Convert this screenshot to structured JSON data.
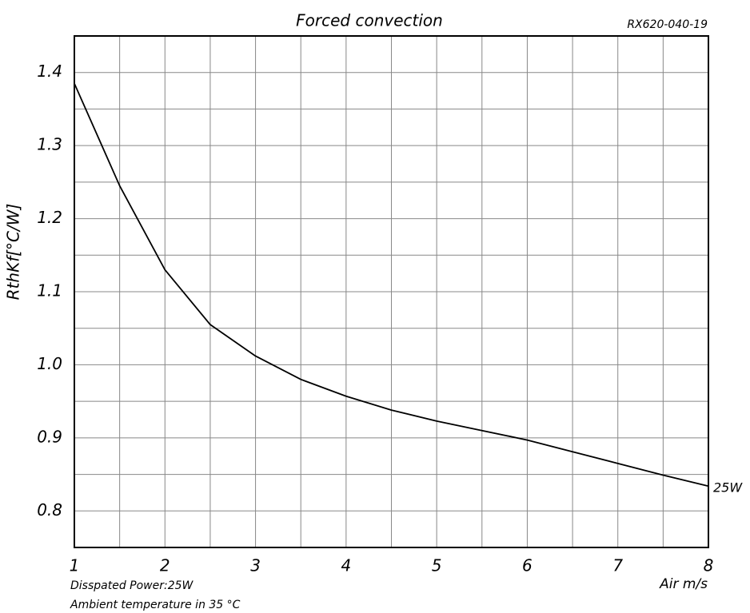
{
  "chart_data": {
    "type": "line",
    "title": "Forced convection",
    "subtitle": "RX620-040-19",
    "y_label": "RthKf[°C/W]",
    "x_label": "Air m/s",
    "annotations": [
      "Disspated Power:25W",
      "Ambient temperature in 35 °C"
    ],
    "x": [
      1,
      1.5,
      2,
      2.5,
      3,
      3.5,
      4,
      4.5,
      5,
      5.5,
      6,
      6.5,
      7,
      7.5,
      8
    ],
    "series": [
      {
        "name": "25W",
        "color": "#000000",
        "values": [
          1.385,
          1.245,
          1.13,
          1.055,
          1.012,
          0.98,
          0.957,
          0.938,
          0.923,
          0.91,
          0.897,
          0.881,
          0.865,
          0.849,
          0.834
        ]
      }
    ],
    "xlim": [
      1,
      8
    ],
    "ylim": [
      0.75,
      1.45
    ],
    "xticks": [
      1,
      2,
      3,
      4,
      5,
      6,
      7,
      8
    ],
    "yticks": [
      0.8,
      0.9,
      {
        "value": 1,
        "label": "1.0"
      },
      1.1,
      1.2,
      1.3,
      1.4
    ],
    "x_minor_ticks": [
      1.5,
      2.5,
      3.5,
      4.5,
      5.5,
      6.5,
      7.5
    ],
    "y_minor_ticks": [
      0.75,
      0.85,
      0.95,
      1.05,
      1.15,
      1.25,
      1.35,
      1.45
    ],
    "grid": true
  }
}
